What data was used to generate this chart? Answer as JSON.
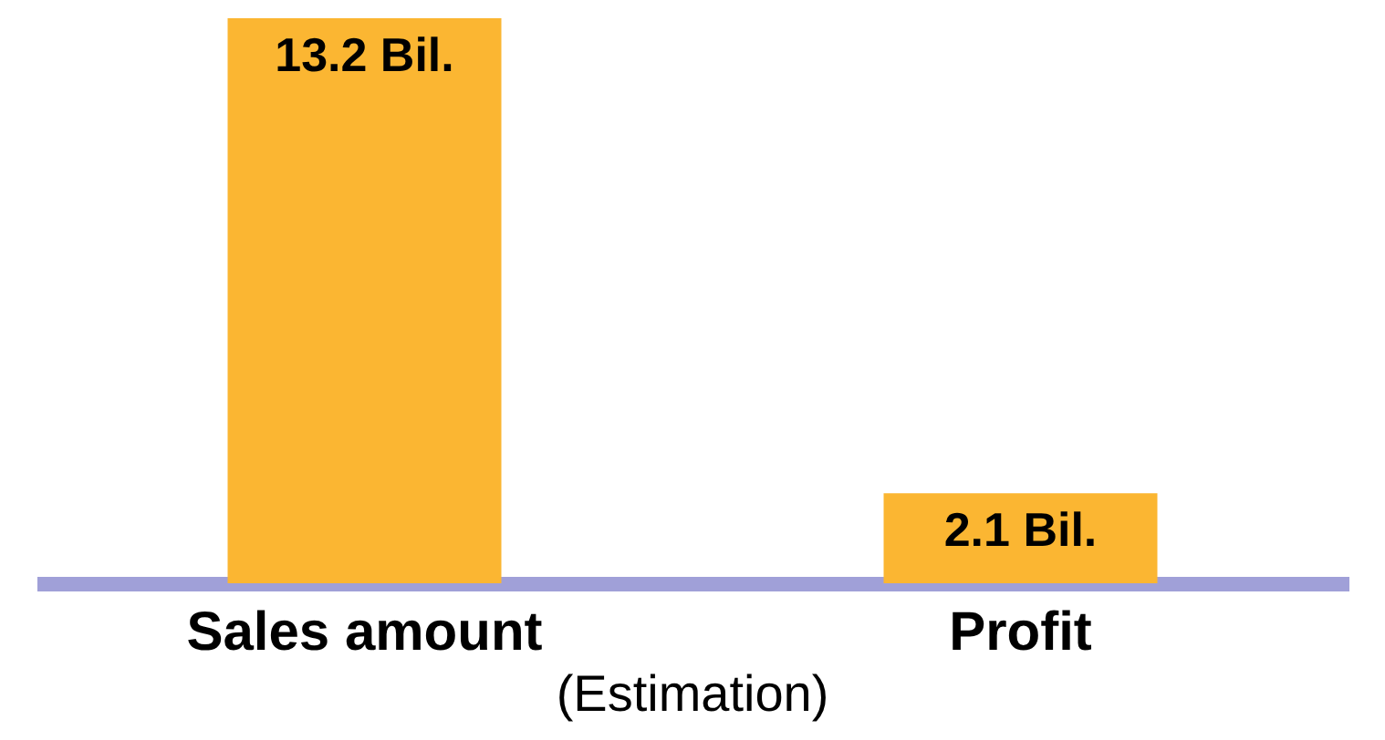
{
  "chart_data": {
    "type": "bar",
    "categories": [
      "Sales amount",
      "Profit"
    ],
    "values": [
      13.2,
      2.1
    ],
    "value_labels": [
      "13.2 Bil.",
      "2.1 Bil."
    ],
    "color": "#fbb632",
    "annotations": [
      "(Estimation)"
    ],
    "grid": false
  }
}
